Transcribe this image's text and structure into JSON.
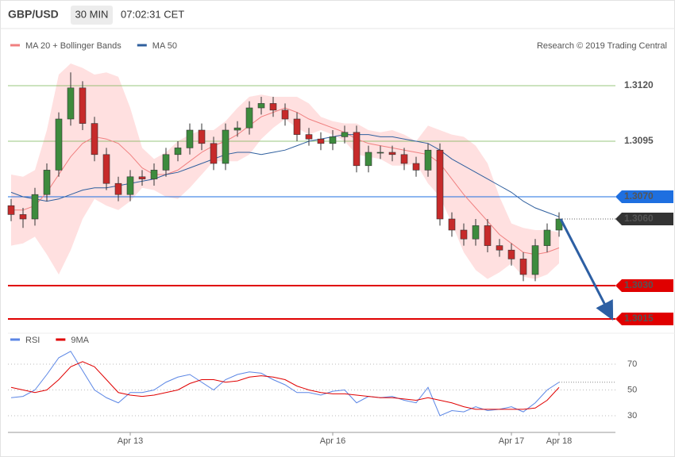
{
  "header": {
    "symbol": "GBP/USD",
    "interval": "30 MIN",
    "time": "07:02:31 CET"
  },
  "chart_data": [
    {
      "type": "candlestick",
      "credit": "Research © 2019 Trading Central",
      "up_color": "#3d8b3d",
      "down_color": "#c62a2a",
      "ylim": [
        1.301,
        1.3144
      ],
      "categories": [
        null,
        null,
        null,
        null,
        null,
        null,
        null,
        null,
        null,
        null,
        "Apr 13",
        null,
        null,
        null,
        null,
        null,
        null,
        null,
        null,
        null,
        null,
        null,
        null,
        null,
        null,
        null,
        null,
        "Apr 16",
        null,
        null,
        null,
        null,
        null,
        null,
        null,
        null,
        null,
        null,
        null,
        null,
        null,
        null,
        "Apr 17",
        null,
        null,
        null,
        "Apr 18"
      ],
      "open": [
        1.3066,
        1.3062,
        1.306,
        1.3071,
        1.3082,
        1.3105,
        1.3119,
        1.3103,
        1.3089,
        1.3076,
        1.3071,
        1.3079,
        1.3078,
        1.3082,
        1.3089,
        1.3092,
        1.31,
        1.3094,
        1.3085,
        1.31,
        1.3101,
        1.311,
        1.3112,
        1.3109,
        1.3105,
        1.3098,
        1.3096,
        1.3094,
        1.3097,
        1.3099,
        1.3084,
        1.309,
        1.309,
        1.3089,
        1.3085,
        1.3082,
        1.3091,
        1.306,
        1.3055,
        1.3051,
        1.3057,
        1.3048,
        1.3046,
        1.3042,
        1.3035,
        1.3048,
        1.3055
      ],
      "high": [
        1.3069,
        1.3065,
        1.3074,
        1.3085,
        1.3108,
        1.3126,
        1.3122,
        1.3106,
        1.3092,
        1.3079,
        1.3082,
        1.3082,
        1.3085,
        1.3092,
        1.3095,
        1.3103,
        1.3103,
        1.3097,
        1.3103,
        1.3104,
        1.3113,
        1.3115,
        1.3115,
        1.3112,
        1.3108,
        1.3101,
        1.3099,
        1.31,
        1.3102,
        1.3102,
        1.3093,
        1.3093,
        1.3093,
        1.3092,
        1.3088,
        1.3094,
        1.3094,
        1.3063,
        1.3058,
        1.306,
        1.306,
        1.3051,
        1.3049,
        1.3045,
        1.3051,
        1.3058,
        1.3063
      ],
      "low": [
        1.3059,
        1.3056,
        1.3057,
        1.3068,
        1.3079,
        1.3102,
        1.31,
        1.3086,
        1.3073,
        1.3068,
        1.3068,
        1.3075,
        1.3075,
        1.3079,
        1.3086,
        1.3089,
        1.3091,
        1.3082,
        1.3082,
        1.3097,
        1.3098,
        1.3107,
        1.3106,
        1.3102,
        1.3095,
        1.3093,
        1.3091,
        1.3091,
        1.3094,
        1.3081,
        1.3081,
        1.3087,
        1.3086,
        1.3082,
        1.3079,
        1.3079,
        1.3057,
        1.3052,
        1.3048,
        1.3048,
        1.3045,
        1.3043,
        1.3039,
        1.3032,
        1.3032,
        1.3045,
        1.3052
      ],
      "close": [
        1.3062,
        1.306,
        1.3071,
        1.3082,
        1.3105,
        1.3119,
        1.3103,
        1.3089,
        1.3076,
        1.3071,
        1.3079,
        1.3078,
        1.3082,
        1.3089,
        1.3092,
        1.31,
        1.3094,
        1.3085,
        1.31,
        1.3101,
        1.311,
        1.3112,
        1.3109,
        1.3105,
        1.3098,
        1.3096,
        1.3094,
        1.3097,
        1.3099,
        1.3084,
        1.309,
        1.309,
        1.3089,
        1.3085,
        1.3082,
        1.3091,
        1.306,
        1.3055,
        1.3051,
        1.3057,
        1.3048,
        1.3046,
        1.3042,
        1.3035,
        1.3048,
        1.3055,
        1.306
      ],
      "series": [
        {
          "name": "MA 20 + Bollinger Bands",
          "color": "#f08080",
          "band_color": "#ffe0e0",
          "values": [
            1.3064,
            1.3064,
            1.3066,
            1.3072,
            1.308,
            1.3088,
            1.3094,
            1.3097,
            1.3096,
            1.3094,
            1.3089,
            1.3083,
            1.308,
            1.308,
            1.3082,
            1.3086,
            1.309,
            1.3093,
            1.3095,
            1.3098,
            1.3102,
            1.3106,
            1.3108,
            1.311,
            1.3108,
            1.3105,
            1.3103,
            1.3101,
            1.3099,
            1.3096,
            1.3094,
            1.3093,
            1.3092,
            1.3091,
            1.309,
            1.3089,
            1.3085,
            1.3078,
            1.3071,
            1.3065,
            1.3059,
            1.3053,
            1.3049,
            1.3045,
            1.3044,
            1.3045,
            1.3047
          ],
          "upper": [
            1.308,
            1.3079,
            1.3082,
            1.31,
            1.3125,
            1.313,
            1.3128,
            1.3125,
            1.3126,
            1.3124,
            1.311,
            1.3092,
            1.3087,
            1.309,
            1.3095,
            1.3098,
            1.31,
            1.31,
            1.3104,
            1.311,
            1.3115,
            1.3116,
            1.3115,
            1.3115,
            1.3115,
            1.3112,
            1.3106,
            1.3104,
            1.3103,
            1.3103,
            1.31,
            1.3099,
            1.31,
            1.3098,
            1.3095,
            1.3102,
            1.31,
            1.3098,
            1.3097,
            1.3093,
            1.3085,
            1.307,
            1.3058,
            1.3056,
            1.3055,
            1.3055,
            1.3054
          ],
          "lower": [
            1.3048,
            1.3049,
            1.3052,
            1.3044,
            1.3035,
            1.3046,
            1.306,
            1.3069,
            1.3066,
            1.3064,
            1.3068,
            1.3074,
            1.3073,
            1.307,
            1.3069,
            1.3074,
            1.308,
            1.3086,
            1.3086,
            1.3086,
            1.3089,
            1.3096,
            1.3101,
            1.3105,
            1.3101,
            1.3098,
            1.31,
            1.3098,
            1.3095,
            1.3089,
            1.3088,
            1.3087,
            1.3084,
            1.3084,
            1.3085,
            1.3076,
            1.307,
            1.3058,
            1.3045,
            1.3037,
            1.3033,
            1.3036,
            1.304,
            1.3034,
            1.3033,
            1.3035,
            1.304
          ]
        },
        {
          "name": "MA 50",
          "color": "#2f5f9e",
          "values": [
            1.3072,
            1.307,
            1.3069,
            1.3068,
            1.3069,
            1.3071,
            1.3073,
            1.3074,
            1.3074,
            1.3075,
            1.3076,
            1.3077,
            1.3078,
            1.308,
            1.3081,
            1.3083,
            1.3085,
            1.3087,
            1.3089,
            1.309,
            1.309,
            1.3089,
            1.309,
            1.3091,
            1.3093,
            1.3095,
            1.3096,
            1.3097,
            1.3098,
            1.3098,
            1.3098,
            1.3097,
            1.3097,
            1.3096,
            1.3095,
            1.3094,
            1.3091,
            1.3087,
            1.3084,
            1.3081,
            1.3078,
            1.3075,
            1.3072,
            1.3068,
            1.3065,
            1.3063,
            1.3061
          ]
        }
      ],
      "levels": [
        {
          "value": 1.312,
          "label": "1.3120",
          "color": "#6db04a",
          "style": "text"
        },
        {
          "value": 1.3095,
          "label": "1.3095",
          "color": "#6db04a",
          "style": "text"
        },
        {
          "value": 1.307,
          "label": "1.3070",
          "color": "#1e6fe0",
          "style": "box"
        },
        {
          "value": 1.306,
          "label": "1.3060",
          "color": "#333333",
          "style": "dotted-box"
        },
        {
          "value": 1.303,
          "label": "1.3030",
          "color": "#e00000",
          "style": "box"
        },
        {
          "value": 1.3015,
          "label": "1.3015",
          "color": "#e00000",
          "style": "box"
        }
      ]
    },
    {
      "type": "line",
      "ylim": [
        20,
        82
      ],
      "yticks": [
        30,
        50,
        70
      ],
      "series": [
        {
          "name": "RSI",
          "color": "#5b86e5",
          "values": [
            44,
            45,
            50,
            62,
            75,
            80,
            65,
            50,
            44,
            40,
            48,
            48,
            50,
            56,
            60,
            62,
            56,
            50,
            58,
            62,
            64,
            63,
            58,
            54,
            48,
            48,
            46,
            49,
            50,
            40,
            45,
            44,
            45,
            42,
            40,
            52,
            30,
            34,
            33,
            37,
            34,
            35,
            37,
            33,
            40,
            50,
            56
          ]
        },
        {
          "name": "9MA",
          "color": "#e00000",
          "values": [
            52,
            50,
            48,
            50,
            58,
            68,
            72,
            68,
            58,
            48,
            46,
            45,
            46,
            48,
            50,
            55,
            58,
            58,
            56,
            57,
            60,
            61,
            60,
            58,
            53,
            50,
            48,
            47,
            47,
            46,
            45,
            44,
            44,
            43,
            42,
            44,
            42,
            40,
            37,
            35,
            35,
            35,
            35,
            35,
            36,
            42,
            52
          ]
        }
      ]
    }
  ]
}
